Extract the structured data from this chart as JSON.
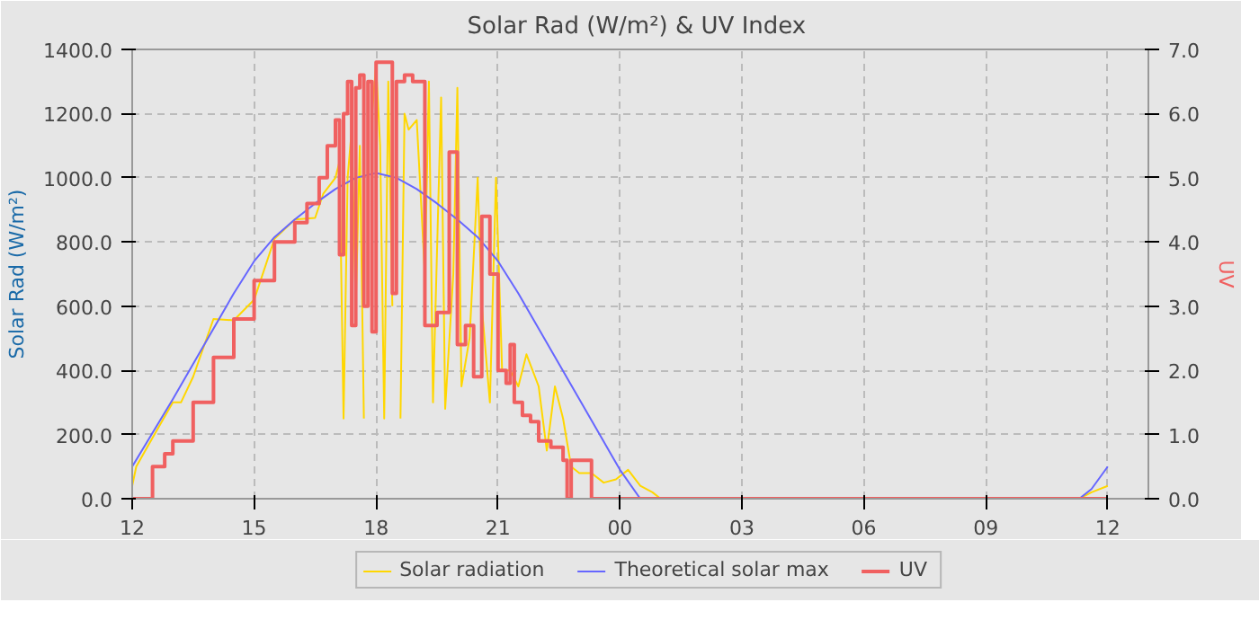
{
  "chart_data": {
    "type": "line",
    "title": "Solar Rad (W/m²) &  UV Index",
    "ylabel": "Solar Rad (W/m²)",
    "y2label": "UV",
    "xlim": [
      12,
      37
    ],
    "xticks": [
      {
        "value": 12,
        "label": "12"
      },
      {
        "value": 15,
        "label": "15"
      },
      {
        "value": 18,
        "label": "18"
      },
      {
        "value": 21,
        "label": "21"
      },
      {
        "value": 24,
        "label": "00"
      },
      {
        "value": 27,
        "label": "03"
      },
      {
        "value": 30,
        "label": "06"
      },
      {
        "value": 33,
        "label": "09"
      },
      {
        "value": 36,
        "label": "12"
      }
    ],
    "ylim": [
      0,
      1400
    ],
    "yticks": [
      {
        "value": 0,
        "label": "0.0"
      },
      {
        "value": 200,
        "label": "200.0"
      },
      {
        "value": 400,
        "label": "400.0"
      },
      {
        "value": 600,
        "label": "600.0"
      },
      {
        "value": 800,
        "label": "800.0"
      },
      {
        "value": 1000,
        "label": "1000.0"
      },
      {
        "value": 1200,
        "label": "1200.0"
      },
      {
        "value": 1400,
        "label": "1400.0"
      }
    ],
    "y2lim": [
      0,
      7
    ],
    "y2ticks": [
      {
        "value": 0,
        "label": "0.0"
      },
      {
        "value": 1,
        "label": "1.0"
      },
      {
        "value": 2,
        "label": "2.0"
      },
      {
        "value": 3,
        "label": "3.0"
      },
      {
        "value": 4,
        "label": "4.0"
      },
      {
        "value": 5,
        "label": "5.0"
      },
      {
        "value": 6,
        "label": "6.0"
      },
      {
        "value": 7,
        "label": "7.0"
      }
    ],
    "grid": true,
    "legend": "bottom",
    "marker": "none",
    "line_style": "solid",
    "series": [
      {
        "name": "Solar radiation",
        "color": "#ffd700",
        "x": [
          12.0,
          12.1,
          12.5,
          13.0,
          13.2,
          13.5,
          14.0,
          14.5,
          15.0,
          15.5,
          16.0,
          16.5,
          16.7,
          17.0,
          17.1,
          17.2,
          17.3,
          17.4,
          17.5,
          17.6,
          17.7,
          17.8,
          17.9,
          18.0,
          18.1,
          18.2,
          18.3,
          18.4,
          18.5,
          18.6,
          18.7,
          18.8,
          19.0,
          19.2,
          19.3,
          19.4,
          19.6,
          19.7,
          19.9,
          20.0,
          20.1,
          20.3,
          20.5,
          20.6,
          20.8,
          20.95,
          21.1,
          21.3,
          21.5,
          21.7,
          22.0,
          22.2,
          22.4,
          22.6,
          22.8,
          23.0,
          23.3,
          23.6,
          23.9,
          24.2,
          24.5,
          24.8,
          25.0,
          35.3,
          35.6,
          36.0
        ],
        "values": [
          40,
          100,
          190,
          300,
          300,
          380,
          560,
          556,
          620,
          810,
          870,
          875,
          950,
          1000,
          1050,
          250,
          1000,
          1150,
          600,
          1100,
          250,
          null,
          1200,
          1350,
          1100,
          250,
          1300,
          600,
          null,
          250,
          1200,
          1150,
          1180,
          700,
          1300,
          300,
          1250,
          280,
          700,
          1280,
          350,
          500,
          1000,
          600,
          300,
          1000,
          400,
          400,
          350,
          450,
          350,
          150,
          350,
          250,
          100,
          80,
          80,
          50,
          60,
          90,
          40,
          20,
          0,
          0,
          20,
          40
        ]
      },
      {
        "name": "Theoretical solar max",
        "color": "#6666ff",
        "x": [
          12.0,
          12.5,
          13.0,
          13.5,
          14.0,
          14.5,
          15.0,
          15.5,
          16.0,
          16.5,
          17.0,
          17.5,
          18.0,
          18.5,
          19.0,
          19.5,
          20.0,
          20.5,
          21.0,
          21.5,
          22.0,
          22.5,
          23.0,
          23.5,
          24.0,
          24.5,
          35.3,
          35.6,
          36.0
        ],
        "values": [
          100,
          205,
          310,
          420,
          530,
          640,
          740,
          815,
          870,
          920,
          965,
          1000,
          1015,
          1000,
          965,
          920,
          870,
          815,
          740,
          640,
          530,
          420,
          310,
          200,
          90,
          0,
          0,
          30,
          100
        ]
      },
      {
        "name": "UV",
        "color": "#f06060",
        "axis": "y2",
        "type": "step",
        "x": [
          12.0,
          12.5,
          12.8,
          13.0,
          13.5,
          14.0,
          14.5,
          15.0,
          15.5,
          16.0,
          16.3,
          16.6,
          16.8,
          17.0,
          17.1,
          17.2,
          17.3,
          17.4,
          17.5,
          17.6,
          17.7,
          17.8,
          17.9,
          18.0,
          18.2,
          18.4,
          18.5,
          18.7,
          18.9,
          19.0,
          19.2,
          19.5,
          19.8,
          20.0,
          20.2,
          20.4,
          20.6,
          20.8,
          21.0,
          21.2,
          21.3,
          21.4,
          21.6,
          21.8,
          22.0,
          22.3,
          22.6,
          22.7,
          22.8,
          23.2,
          23.3,
          36.0
        ],
        "values": [
          0,
          0.5,
          0.7,
          0.9,
          1.5,
          2.2,
          2.8,
          3.4,
          4.0,
          4.3,
          4.6,
          5.0,
          5.5,
          5.9,
          3.8,
          6.0,
          6.5,
          2.7,
          6.4,
          6.6,
          3.0,
          6.5,
          2.6,
          6.8,
          6.8,
          3.2,
          6.5,
          6.6,
          6.5,
          6.5,
          2.7,
          2.9,
          5.4,
          2.4,
          2.7,
          1.9,
          4.4,
          3.5,
          2.0,
          1.8,
          2.4,
          1.5,
          1.3,
          1.2,
          0.9,
          0.8,
          0.6,
          0.0,
          0.6,
          0.6,
          0.0,
          0.0
        ]
      }
    ]
  }
}
